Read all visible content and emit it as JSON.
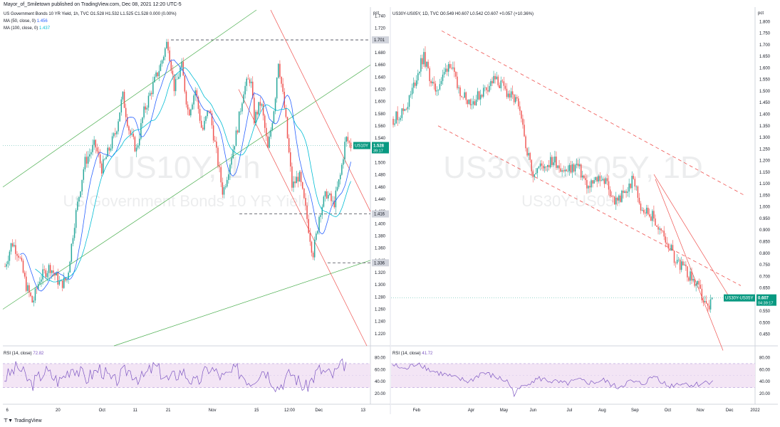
{
  "header": {
    "published_by": "Mayor_of_Smiletown published on TradingView.com, Dec 08, 2021 12:20 UTC-5"
  },
  "footer": {
    "brand": "TradingView",
    "brand_icon": "tradingview-logo-icon"
  },
  "colors": {
    "candle_up": "#26a69a",
    "candle_down": "#ef5350",
    "ma50": "#2962ff",
    "ma100": "#00bcd4",
    "rsi_line": "#7e57c2",
    "rsi_band": "#f3e5f5",
    "channel_green": "#4caf50",
    "channel_red": "#ef5350",
    "level_dash": "#434651",
    "ticker_tag": "#089981"
  },
  "chart_data": [
    {
      "type": "candlestick",
      "legend": {
        "title": "US Government Bonds 10 YR Yield, 1h, TVC",
        "ohlc": [
          "O1.528",
          "H1.532",
          "L1.525",
          "C1.528",
          "0.000 (0.00%)"
        ],
        "ma50_label": "MA (50, close, 0)",
        "ma50_value": "1.456",
        "ma100_label": "MA (100, close, 0)",
        "ma100_value": "1.437"
      },
      "watermark_symbol": "US10Y, 1h",
      "watermark_desc": "US Government Bonds 10 YR Yield",
      "y_unit": "pct",
      "ylim": [
        1.2,
        1.75
      ],
      "y_ticks": [
        "1.740",
        "1.720",
        "1.700",
        "1.680",
        "1.660",
        "1.640",
        "1.620",
        "1.600",
        "1.580",
        "1.560",
        "1.540",
        "1.520",
        "1.500",
        "1.480",
        "1.460",
        "1.440",
        "1.420",
        "1.400",
        "1.380",
        "1.360",
        "1.340",
        "1.320",
        "1.300",
        "1.280",
        "1.260",
        "1.240",
        "1.220"
      ],
      "x_ticks": [
        "6",
        "20",
        "Oct",
        "11",
        "21",
        "Nov",
        "15",
        "12:00",
        "Dec",
        "13"
      ],
      "x_tick_pos": [
        0.012,
        0.15,
        0.27,
        0.36,
        0.45,
        0.57,
        0.69,
        0.78,
        0.86,
        0.98
      ],
      "price_points": [
        [
          0,
          1.33
        ],
        [
          0.01,
          1.35
        ],
        [
          0.02,
          1.37
        ],
        [
          0.04,
          1.35
        ],
        [
          0.06,
          1.3
        ],
        [
          0.08,
          1.27
        ],
        [
          0.1,
          1.31
        ],
        [
          0.13,
          1.33
        ],
        [
          0.16,
          1.3
        ],
        [
          0.18,
          1.31
        ],
        [
          0.2,
          1.4
        ],
        [
          0.23,
          1.5
        ],
        [
          0.26,
          1.53
        ],
        [
          0.28,
          1.49
        ],
        [
          0.3,
          1.52
        ],
        [
          0.32,
          1.55
        ],
        [
          0.34,
          1.61
        ],
        [
          0.36,
          1.55
        ],
        [
          0.38,
          1.52
        ],
        [
          0.4,
          1.58
        ],
        [
          0.43,
          1.63
        ],
        [
          0.45,
          1.66
        ],
        [
          0.47,
          1.7
        ],
        [
          0.49,
          1.62
        ],
        [
          0.51,
          1.66
        ],
        [
          0.53,
          1.58
        ],
        [
          0.55,
          1.62
        ],
        [
          0.57,
          1.55
        ],
        [
          0.59,
          1.59
        ],
        [
          0.61,
          1.52
        ],
        [
          0.63,
          1.45
        ],
        [
          0.65,
          1.5
        ],
        [
          0.67,
          1.55
        ],
        [
          0.69,
          1.62
        ],
        [
          0.71,
          1.64
        ],
        [
          0.72,
          1.57
        ],
        [
          0.74,
          1.6
        ],
        [
          0.76,
          1.52
        ],
        [
          0.78,
          1.6
        ],
        [
          0.79,
          1.67
        ],
        [
          0.81,
          1.58
        ],
        [
          0.83,
          1.46
        ],
        [
          0.85,
          1.48
        ],
        [
          0.87,
          1.42
        ],
        [
          0.89,
          1.35
        ],
        [
          0.9,
          1.38
        ],
        [
          0.91,
          1.42
        ],
        [
          0.93,
          1.45
        ],
        [
          0.95,
          1.43
        ],
        [
          0.97,
          1.48
        ],
        [
          0.985,
          1.54
        ],
        [
          1.0,
          1.528
        ]
      ],
      "last_price_tag": {
        "ticker": "US10Y",
        "price": "1.528",
        "countdown": "39:17"
      },
      "levels": [
        {
          "label": "1.701",
          "value": 1.701
        },
        {
          "label": "1.416",
          "value": 1.416
        },
        {
          "label": "1.336",
          "value": 1.336
        }
      ],
      "rsi": {
        "label": "RSI (14, close)",
        "value": "72.82",
        "ticks": [
          "80.00",
          "60.00",
          "40.00",
          "20.00"
        ],
        "band": [
          30,
          70
        ],
        "points": [
          [
            0,
            45
          ],
          [
            0.04,
            65
          ],
          [
            0.08,
            35
          ],
          [
            0.12,
            58
          ],
          [
            0.16,
            40
          ],
          [
            0.2,
            66
          ],
          [
            0.24,
            45
          ],
          [
            0.28,
            62
          ],
          [
            0.32,
            38
          ],
          [
            0.36,
            60
          ],
          [
            0.4,
            44
          ],
          [
            0.44,
            66
          ],
          [
            0.48,
            42
          ],
          [
            0.52,
            58
          ],
          [
            0.56,
            35
          ],
          [
            0.6,
            64
          ],
          [
            0.64,
            46
          ],
          [
            0.68,
            60
          ],
          [
            0.72,
            40
          ],
          [
            0.76,
            62
          ],
          [
            0.8,
            30
          ],
          [
            0.84,
            55
          ],
          [
            0.88,
            28
          ],
          [
            0.92,
            60
          ],
          [
            0.96,
            50
          ],
          [
            1.0,
            72.82
          ]
        ]
      }
    },
    {
      "type": "candlestick",
      "legend": {
        "title": "US30Y-US05Y, 1D, TVC",
        "ohlc": [
          "O0.549",
          "H0.607",
          "L0.542",
          "C0.607",
          "+0.057 (+10.36%)"
        ]
      },
      "watermark_symbol": "US30Y-US05Y, 1D",
      "watermark_desc": "US30Y-US05Y",
      "y_unit": "pct",
      "ylim": [
        0.4,
        1.85
      ],
      "y_ticks": [
        "1.800",
        "1.750",
        "1.700",
        "1.650",
        "1.600",
        "1.550",
        "1.500",
        "1.450",
        "1.400",
        "1.350",
        "1.300",
        "1.250",
        "1.200",
        "1.150",
        "1.100",
        "1.050",
        "1.000",
        "0.950",
        "0.900",
        "0.850",
        "0.800",
        "0.750",
        "0.700",
        "0.650",
        "0.600",
        "0.550",
        "0.500",
        "0.450"
      ],
      "x_ticks": [
        "Feb",
        "Apr",
        "May",
        "Jun",
        "Jul",
        "Aug",
        "Sep",
        "Oct",
        "Nov",
        "Dec",
        "2022"
      ],
      "x_tick_pos": [
        0.07,
        0.22,
        0.31,
        0.39,
        0.49,
        0.58,
        0.67,
        0.76,
        0.85,
        0.93,
        1.0
      ],
      "price_points": [
        [
          0,
          1.38
        ],
        [
          0.02,
          1.4
        ],
        [
          0.04,
          1.45
        ],
        [
          0.06,
          1.55
        ],
        [
          0.08,
          1.65
        ],
        [
          0.09,
          1.6
        ],
        [
          0.11,
          1.5
        ],
        [
          0.13,
          1.55
        ],
        [
          0.15,
          1.63
        ],
        [
          0.17,
          1.52
        ],
        [
          0.19,
          1.48
        ],
        [
          0.21,
          1.45
        ],
        [
          0.24,
          1.5
        ],
        [
          0.27,
          1.55
        ],
        [
          0.29,
          1.52
        ],
        [
          0.31,
          1.48
        ],
        [
          0.33,
          1.45
        ],
        [
          0.35,
          1.3
        ],
        [
          0.37,
          1.15
        ],
        [
          0.4,
          1.18
        ],
        [
          0.43,
          1.2
        ],
        [
          0.46,
          1.15
        ],
        [
          0.49,
          1.18
        ],
        [
          0.52,
          1.08
        ],
        [
          0.55,
          1.13
        ],
        [
          0.57,
          1.1
        ],
        [
          0.59,
          1.02
        ],
        [
          0.62,
          1.06
        ],
        [
          0.64,
          1.12
        ],
        [
          0.66,
          1.0
        ],
        [
          0.69,
          0.96
        ],
        [
          0.71,
          0.9
        ],
        [
          0.73,
          0.85
        ],
        [
          0.75,
          0.78
        ],
        [
          0.77,
          0.74
        ],
        [
          0.79,
          0.7
        ],
        [
          0.81,
          0.66
        ],
        [
          0.82,
          0.62
        ],
        [
          0.83,
          0.58
        ],
        [
          0.84,
          0.55
        ],
        [
          0.85,
          0.607
        ]
      ],
      "last_price_tag": {
        "ticker": "US30Y-US05Y",
        "price": "0.607",
        "countdown": "04:39:17"
      },
      "rsi": {
        "label": "RSI (14, close)",
        "value": "41.72",
        "ticks": [
          "80.00",
          "60.00",
          "40.00",
          "20.00"
        ],
        "band": [
          30,
          70
        ],
        "points": [
          [
            0,
            68
          ],
          [
            0.04,
            60
          ],
          [
            0.08,
            72
          ],
          [
            0.12,
            58
          ],
          [
            0.16,
            52
          ],
          [
            0.2,
            45
          ],
          [
            0.24,
            40
          ],
          [
            0.28,
            55
          ],
          [
            0.32,
            48
          ],
          [
            0.36,
            40
          ],
          [
            0.38,
            20
          ],
          [
            0.42,
            38
          ],
          [
            0.46,
            45
          ],
          [
            0.5,
            40
          ],
          [
            0.54,
            36
          ],
          [
            0.58,
            42
          ],
          [
            0.62,
            38
          ],
          [
            0.66,
            42
          ],
          [
            0.7,
            30
          ],
          [
            0.74,
            40
          ],
          [
            0.78,
            36
          ],
          [
            0.82,
            50
          ],
          [
            0.86,
            32
          ],
          [
            0.9,
            38
          ],
          [
            0.94,
            34
          ],
          [
            1.0,
            41.72
          ]
        ]
      }
    }
  ]
}
